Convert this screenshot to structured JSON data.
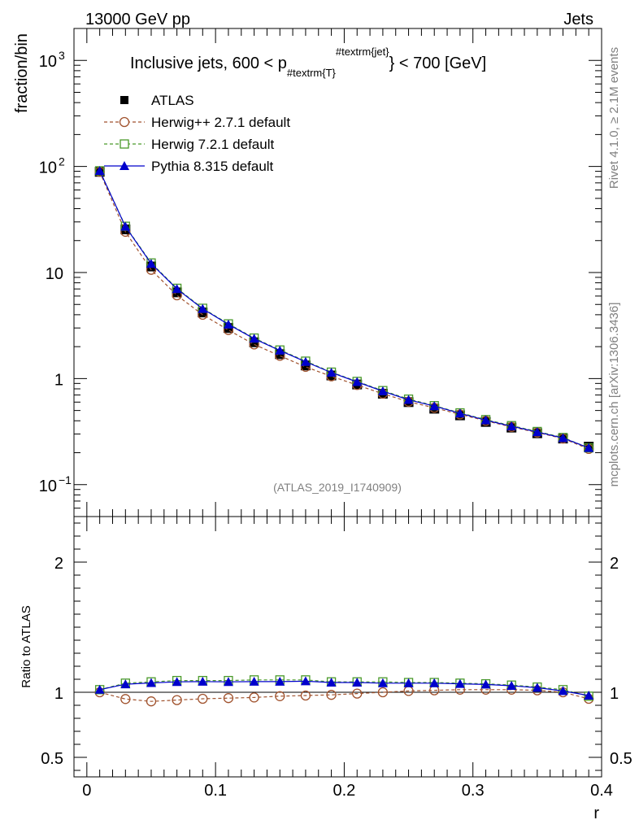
{
  "header": {
    "left": "13000 GeV pp",
    "right": "Jets",
    "side_rivet": "Rivet 4.1.0, ≥ 2.1M events",
    "side_site": "mcplots.cern.ch [arXiv:1306.3436]",
    "watermark": "(ATLAS_2019_I1740909)"
  },
  "chart_data": [
    {
      "type": "line",
      "panel": "main",
      "title_parts": {
        "pre": "Inclusive jets, 600 < p",
        "sub": "#textrm{T}",
        "sup": "#textrm{jet}",
        "post": "} < 700 [GeV]"
      },
      "ylabel": "fraction/bin",
      "yscale": "log",
      "ylim": [
        0.05,
        2000
      ],
      "xlim": [
        -0.01,
        0.4
      ],
      "yticks": [
        {
          "label": "10",
          "exp": "−1",
          "value": 0.1
        },
        {
          "label": "1",
          "value": 1
        },
        {
          "label": "10",
          "value": 10
        },
        {
          "label": "10",
          "exp": "2",
          "value": 100
        },
        {
          "label": "10",
          "exp": "3",
          "value": 1000
        }
      ],
      "x": [
        0.01,
        0.03,
        0.05,
        0.07,
        0.09,
        0.11,
        0.13,
        0.15,
        0.17,
        0.19,
        0.21,
        0.23,
        0.25,
        0.27,
        0.29,
        0.31,
        0.33,
        0.35,
        0.37,
        0.39
      ],
      "series": [
        {
          "name": "ATLAS",
          "key": "atlas",
          "color": "#000000",
          "marker": "square-filled",
          "line": "none",
          "values": [
            89,
            25.5,
            11.4,
            6.5,
            4.2,
            3.0,
            2.2,
            1.7,
            1.33,
            1.07,
            0.88,
            0.72,
            0.6,
            0.52,
            0.45,
            0.39,
            0.345,
            0.305,
            0.272,
            0.228
          ]
        },
        {
          "name": "Herwig++ 2.7.1 default",
          "key": "herwigpp",
          "color": "#a0522d",
          "marker": "circle-open",
          "line": "dashed",
          "values": [
            89,
            24.2,
            10.6,
            6.1,
            4.0,
            2.87,
            2.1,
            1.64,
            1.29,
            1.05,
            0.87,
            0.72,
            0.605,
            0.53,
            0.46,
            0.4,
            0.35,
            0.31,
            0.272,
            0.217
          ]
        },
        {
          "name": "Herwig 7.2.1 default",
          "key": "herwig7",
          "color": "#4a9a2a",
          "marker": "square-open",
          "line": "dashed",
          "values": [
            91,
            27.3,
            12.3,
            7.1,
            4.6,
            3.28,
            2.41,
            1.86,
            1.46,
            1.15,
            0.94,
            0.77,
            0.64,
            0.555,
            0.475,
            0.41,
            0.36,
            0.317,
            0.278,
            0.222
          ]
        },
        {
          "name": "Pythia 8.315 default",
          "key": "pythia",
          "color": "#0000cc",
          "marker": "triangle-filled",
          "line": "solid",
          "values": [
            91,
            27.1,
            12.1,
            7.0,
            4.55,
            3.24,
            2.38,
            1.84,
            1.44,
            1.14,
            0.93,
            0.76,
            0.63,
            0.55,
            0.47,
            0.405,
            0.355,
            0.313,
            0.275,
            0.222
          ]
        }
      ]
    },
    {
      "type": "line",
      "panel": "ratio",
      "ylabel": "Ratio to ATLAS",
      "xlabel": "r",
      "ylim": [
        0.35,
        2.35
      ],
      "xlim": [
        -0.01,
        0.4
      ],
      "xticks": [
        {
          "label": "0",
          "value": 0
        },
        {
          "label": "0.1",
          "value": 0.1
        },
        {
          "label": "0.2",
          "value": 0.2
        },
        {
          "label": "0.3",
          "value": 0.3
        },
        {
          "label": "0.4",
          "value": 0.4
        }
      ],
      "yticks": [
        {
          "label": "0.5",
          "value": 0.5
        },
        {
          "label": "1",
          "value": 1
        },
        {
          "label": "2",
          "value": 2
        }
      ],
      "x": [
        0.01,
        0.03,
        0.05,
        0.07,
        0.09,
        0.11,
        0.13,
        0.15,
        0.17,
        0.19,
        0.21,
        0.23,
        0.25,
        0.27,
        0.29,
        0.31,
        0.33,
        0.35,
        0.37,
        0.39
      ],
      "series": [
        {
          "name": "Herwig++ 2.7.1 default",
          "key": "herwigpp",
          "color": "#a0522d",
          "marker": "circle-open",
          "line": "dashed",
          "values": [
            1.0,
            0.948,
            0.93,
            0.94,
            0.95,
            0.955,
            0.96,
            0.97,
            0.975,
            0.98,
            0.99,
            1.0,
            1.01,
            1.015,
            1.02,
            1.02,
            1.02,
            1.015,
            1.0,
            0.95
          ]
        },
        {
          "name": "Herwig 7.2.1 default",
          "key": "herwig7",
          "color": "#4a9a2a",
          "marker": "square-open",
          "line": "dashed",
          "values": [
            1.02,
            1.07,
            1.08,
            1.09,
            1.09,
            1.09,
            1.095,
            1.095,
            1.095,
            1.08,
            1.08,
            1.08,
            1.075,
            1.075,
            1.07,
            1.065,
            1.055,
            1.04,
            1.02,
            0.97
          ]
        },
        {
          "name": "Pythia 8.315 default",
          "key": "pythia",
          "color": "#0000cc",
          "marker": "triangle-filled",
          "line": "solid",
          "values": [
            1.02,
            1.062,
            1.072,
            1.08,
            1.082,
            1.08,
            1.082,
            1.082,
            1.085,
            1.075,
            1.075,
            1.07,
            1.07,
            1.07,
            1.065,
            1.06,
            1.05,
            1.035,
            1.01,
            0.975
          ]
        }
      ]
    }
  ]
}
